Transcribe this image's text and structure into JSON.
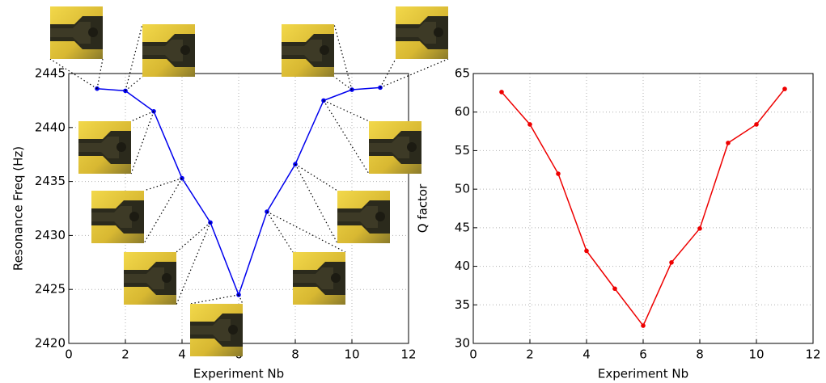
{
  "chart_data": [
    {
      "type": "line",
      "x_label": "Experiment Nb",
      "y_label": "Resonance Freq (Hz)",
      "x": [
        1,
        2,
        3,
        4,
        5,
        6,
        7,
        8,
        9,
        10,
        11
      ],
      "series": [
        {
          "color": "#0000ee",
          "values": [
            2443.6,
            2443.4,
            2441.5,
            2435.3,
            2431.2,
            2424.5,
            2432.2,
            2436.6,
            2442.5,
            2443.5,
            2443.7
          ]
        }
      ],
      "xlim": [
        0,
        12
      ],
      "xticks": [
        0,
        2,
        4,
        6,
        8,
        10,
        12
      ],
      "ylim": [
        2420,
        2445
      ],
      "yticks": [
        2420,
        2425,
        2430,
        2435,
        2440,
        2445
      ],
      "grid": true
    },
    {
      "type": "line",
      "x_label": "Experiment Nb",
      "y_label": "Q factor",
      "x": [
        1,
        2,
        3,
        4,
        5,
        6,
        7,
        8,
        9,
        10,
        11
      ],
      "series": [
        {
          "color": "#ee0000",
          "values": [
            62.6,
            58.4,
            52.0,
            42.0,
            37.1,
            32.3,
            40.5,
            44.9,
            56.0,
            58.4,
            63.0
          ]
        }
      ],
      "xlim": [
        0,
        12
      ],
      "xticks": [
        0,
        2,
        4,
        6,
        8,
        10,
        12
      ],
      "ylim": [
        30,
        65
      ],
      "yticks": [
        30,
        35,
        40,
        45,
        50,
        55,
        60,
        65
      ],
      "grid": true
    }
  ]
}
